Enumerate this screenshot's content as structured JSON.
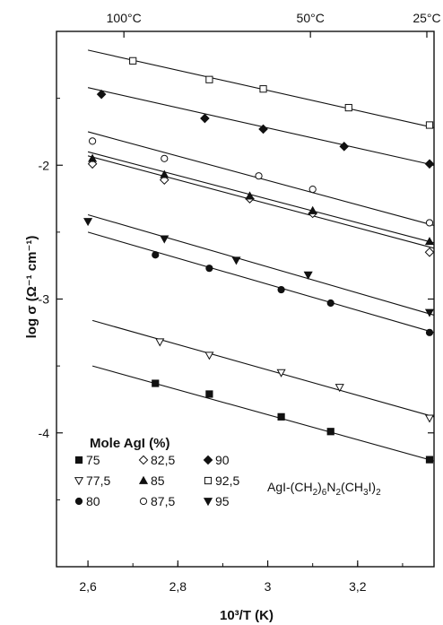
{
  "chart_data": {
    "type": "scatter",
    "xlabel": "10³/T (K)",
    "ylabel": "log σ (Ω⁻¹ cm⁻¹)",
    "xlim": [
      2.53,
      3.37
    ],
    "ylim": [
      -5.0,
      -1.0
    ],
    "x_ticks": [
      2.6,
      2.8,
      3.0,
      3.2
    ],
    "x_tick_labels": [
      "2,6",
      "2,8",
      "3",
      "3,2"
    ],
    "y_ticks": [
      -2,
      -3,
      -4
    ],
    "y_tick_labels": [
      "-2",
      "-3",
      "-4"
    ],
    "top_axis": {
      "labels": [
        "100°C",
        "50°C",
        "25°C"
      ],
      "x": [
        2.68,
        3.095,
        3.354
      ]
    },
    "legend": {
      "title": "Mole AgI (%)",
      "placement": "lower-left"
    },
    "annotation": {
      "base": "AgI-(CH",
      "s1": "2",
      "m1": ")",
      "s2": "6",
      "m2": "N",
      "s3": "2",
      "m3": "(CH",
      "s4": "3",
      "m4": "I)",
      "s5": "2"
    },
    "series": [
      {
        "name": "75",
        "marker": "square-filled",
        "x": [
          2.75,
          2.87,
          3.03,
          3.14,
          3.36
        ],
        "y": [
          -3.63,
          -3.71,
          -3.88,
          -3.99,
          -4.2
        ],
        "line": [
          [
            2.61,
            -3.5
          ],
          [
            3.37,
            -4.21
          ]
        ]
      },
      {
        "name": "77,5",
        "marker": "triangle-down-open",
        "x": [
          2.76,
          2.87,
          3.03,
          3.16,
          3.36
        ],
        "y": [
          -3.32,
          -3.42,
          -3.55,
          -3.66,
          -3.89
        ],
        "line": [
          [
            2.61,
            -3.16
          ],
          [
            3.37,
            -3.88
          ]
        ]
      },
      {
        "name": "80",
        "marker": "circle-filled",
        "x": [
          2.75,
          2.87,
          3.03,
          3.14,
          3.36
        ],
        "y": [
          -2.67,
          -2.77,
          -2.93,
          -3.03,
          -3.25
        ],
        "line": [
          [
            2.6,
            -2.5
          ],
          [
            3.37,
            -3.25
          ]
        ]
      },
      {
        "name": "82,5",
        "marker": "diamond-open",
        "x": [
          2.61,
          2.77,
          2.96,
          3.1,
          3.36
        ],
        "y": [
          -1.99,
          -2.11,
          -2.25,
          -2.36,
          -2.65
        ],
        "line": [
          [
            2.6,
            -1.93
          ],
          [
            3.37,
            -2.62
          ]
        ]
      },
      {
        "name": "85",
        "marker": "triangle-up-filled",
        "x": [
          2.61,
          2.77,
          2.96,
          3.1,
          3.36
        ],
        "y": [
          -1.95,
          -2.07,
          -2.23,
          -2.34,
          -2.57
        ],
        "line": [
          [
            2.6,
            -1.9
          ],
          [
            3.37,
            -2.58
          ]
        ]
      },
      {
        "name": "87,5",
        "marker": "circle-open",
        "x": [
          2.61,
          2.77,
          2.98,
          3.1,
          3.36
        ],
        "y": [
          -1.82,
          -1.95,
          -2.08,
          -2.18,
          -2.43
        ],
        "line": [
          [
            2.6,
            -1.75
          ],
          [
            3.37,
            -2.45
          ]
        ]
      },
      {
        "name": "90",
        "marker": "diamond-filled",
        "x": [
          2.63,
          2.86,
          2.99,
          3.17,
          3.36
        ],
        "y": [
          -1.47,
          -1.65,
          -1.73,
          -1.86,
          -1.99
        ],
        "line": [
          [
            2.6,
            -1.42
          ],
          [
            3.37,
            -2.0
          ]
        ]
      },
      {
        "name": "92,5",
        "marker": "square-open",
        "x": [
          2.7,
          2.87,
          2.99,
          3.18,
          3.36
        ],
        "y": [
          -1.22,
          -1.36,
          -1.43,
          -1.57,
          -1.7
        ],
        "line": [
          [
            2.6,
            -1.14
          ],
          [
            3.37,
            -1.72
          ]
        ]
      },
      {
        "name": "95",
        "marker": "triangle-down-filled",
        "x": [
          2.6,
          2.77,
          2.93,
          3.09,
          3.36
        ],
        "y": [
          -2.42,
          -2.55,
          -2.71,
          -2.82,
          -3.1
        ],
        "line": [
          [
            2.6,
            -2.37
          ],
          [
            3.37,
            -3.12
          ]
        ]
      }
    ]
  }
}
